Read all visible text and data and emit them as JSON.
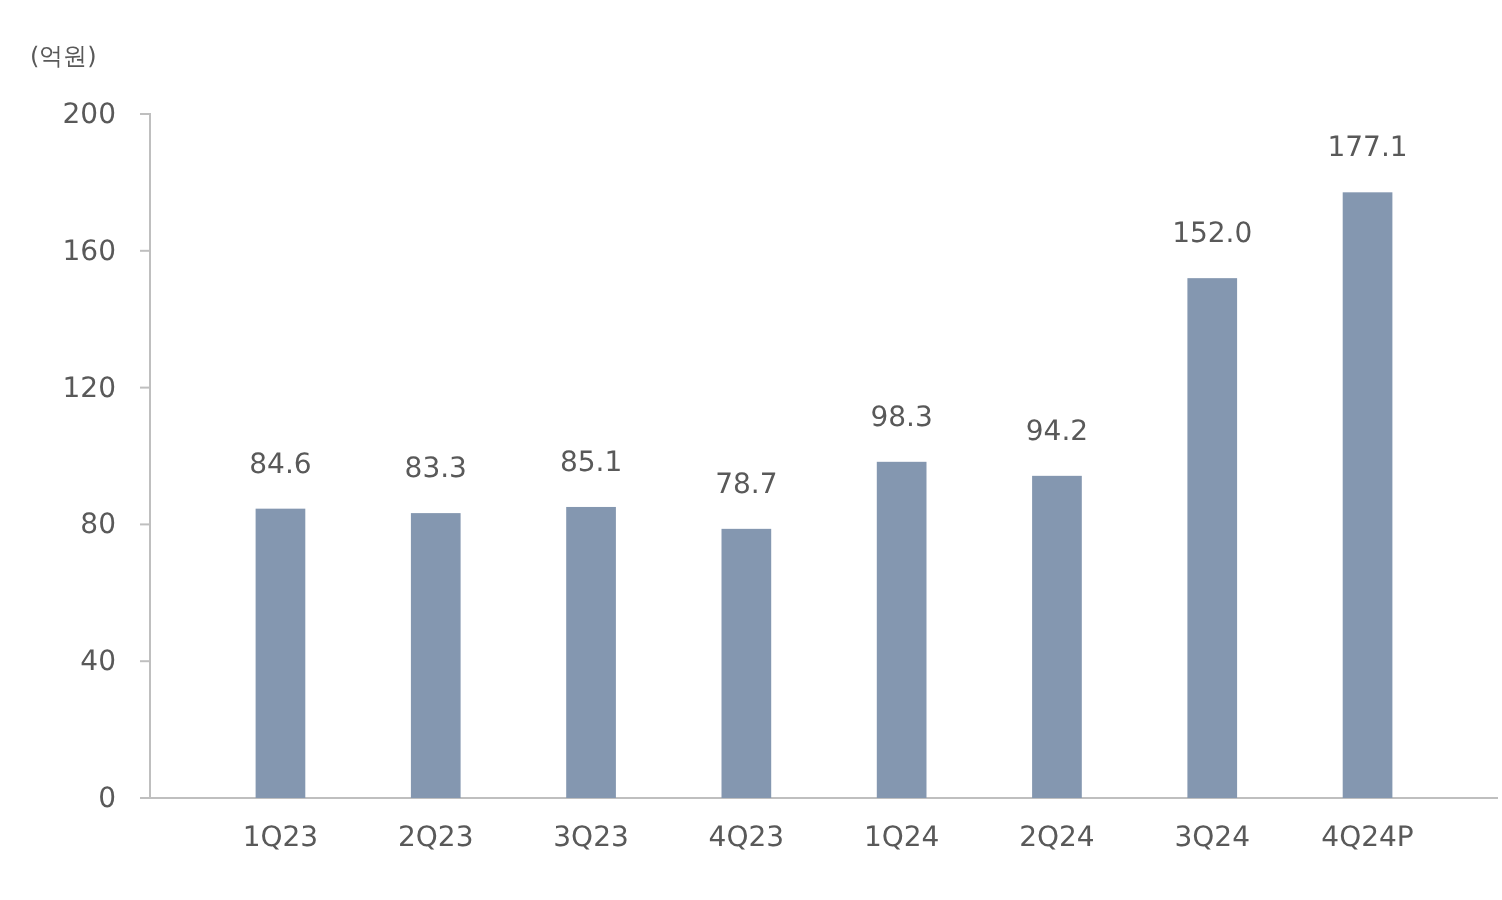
{
  "chart_data": {
    "type": "bar",
    "ylabel": "(억원)",
    "categories": [
      "1Q23",
      "2Q23",
      "3Q23",
      "4Q23",
      "1Q24",
      "2Q24",
      "3Q24",
      "4Q24P"
    ],
    "series": [
      {
        "color": "#8497b0",
        "values": [
          84.6,
          83.3,
          85.1,
          78.7,
          98.3,
          94.2,
          152.0,
          177.1
        ],
        "value_labels": [
          "84.6",
          "83.3",
          "85.1",
          "78.7",
          "98.3",
          "94.2",
          "152.0",
          "177.1"
        ]
      }
    ],
    "ylim": [
      0,
      200
    ],
    "yticks": [
      0,
      40,
      80,
      120,
      160,
      200
    ]
  }
}
